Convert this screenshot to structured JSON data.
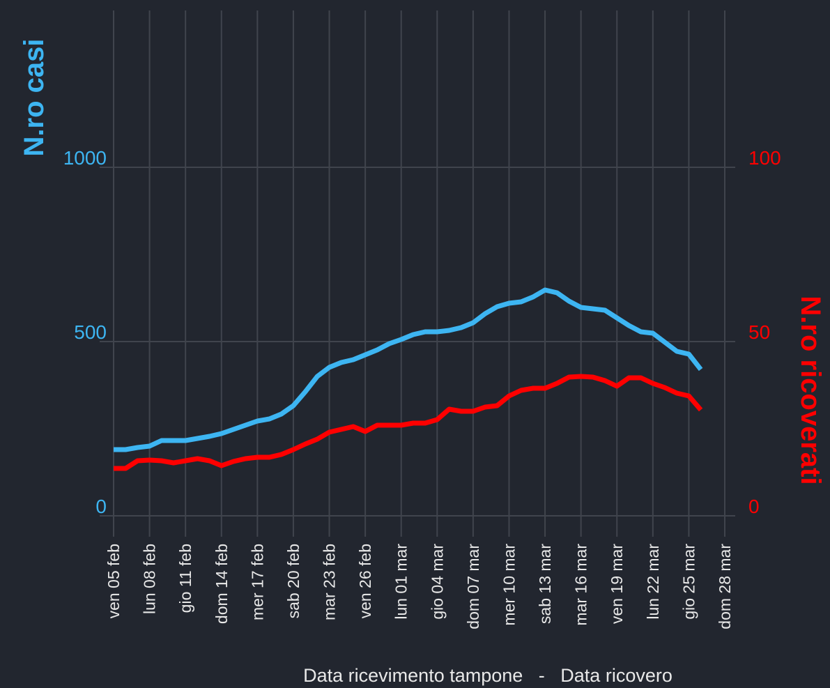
{
  "chart_data": {
    "type": "line",
    "y_label": "N.ro casi",
    "y2_label": "N.ro ricoverati",
    "x_label": "Data ricevimento tampone   -   Data ricovero",
    "categories": [
      "ven 05 feb",
      null,
      null,
      "lun 08 feb",
      null,
      null,
      "gio 11 feb",
      null,
      null,
      "dom 14 feb",
      null,
      null,
      "mer 17 feb",
      null,
      null,
      "sab 20 feb",
      null,
      null,
      "mar 23 feb",
      null,
      null,
      "ven 26 feb",
      null,
      null,
      "lun 01 mar",
      null,
      null,
      "gio 04 mar",
      null,
      null,
      "dom 07 mar",
      null,
      null,
      "mer 10 mar",
      null,
      null,
      "sab 13 mar",
      null,
      null,
      "mar 16 mar",
      null,
      null,
      "ven 19 mar",
      null,
      null,
      "lun 22 mar",
      null,
      null,
      "gio 25 mar",
      null,
      null,
      "dom 28 mar"
    ],
    "series": [
      {
        "name": "N.ro casi",
        "color": "#3db5f2",
        "axis": "y",
        "values": [
          190,
          190,
          196,
          200,
          216,
          216,
          216,
          222,
          228,
          236,
          248,
          260,
          272,
          278,
          292,
          316,
          356,
          400,
          426,
          440,
          448,
          462,
          476,
          494,
          506,
          520,
          528,
          528,
          532,
          540,
          554,
          580,
          600,
          610,
          614,
          628,
          648,
          640,
          616,
          598,
          594,
          590,
          568,
          546,
          528,
          524,
          498,
          472,
          464,
          420,
          null,
          null
        ]
      },
      {
        "name": "N.ro ricoverati",
        "color": "#ff0000",
        "axis": "y2",
        "values": [
          13.6,
          13.6,
          15.8,
          16,
          15.8,
          15.2,
          15.8,
          16.4,
          15.8,
          14.4,
          15.6,
          16.4,
          16.8,
          16.8,
          17.6,
          19,
          20.6,
          22,
          24,
          24.8,
          25.6,
          24.2,
          26,
          26,
          26,
          26.6,
          26.6,
          27.6,
          30.6,
          30,
          30,
          31.2,
          31.6,
          34.4,
          36,
          36.6,
          36.6,
          38,
          39.8,
          40,
          39.8,
          38.8,
          37.2,
          39.6,
          39.6,
          38,
          36.8,
          35.2,
          34.4,
          30.4,
          null,
          null
        ]
      }
    ],
    "ylim": [
      -50,
      1450
    ],
    "yticks": [
      0,
      500,
      1000
    ],
    "y2lim": [
      -5,
      145
    ],
    "y2ticks": [
      0,
      50,
      100
    ],
    "grid": true
  }
}
